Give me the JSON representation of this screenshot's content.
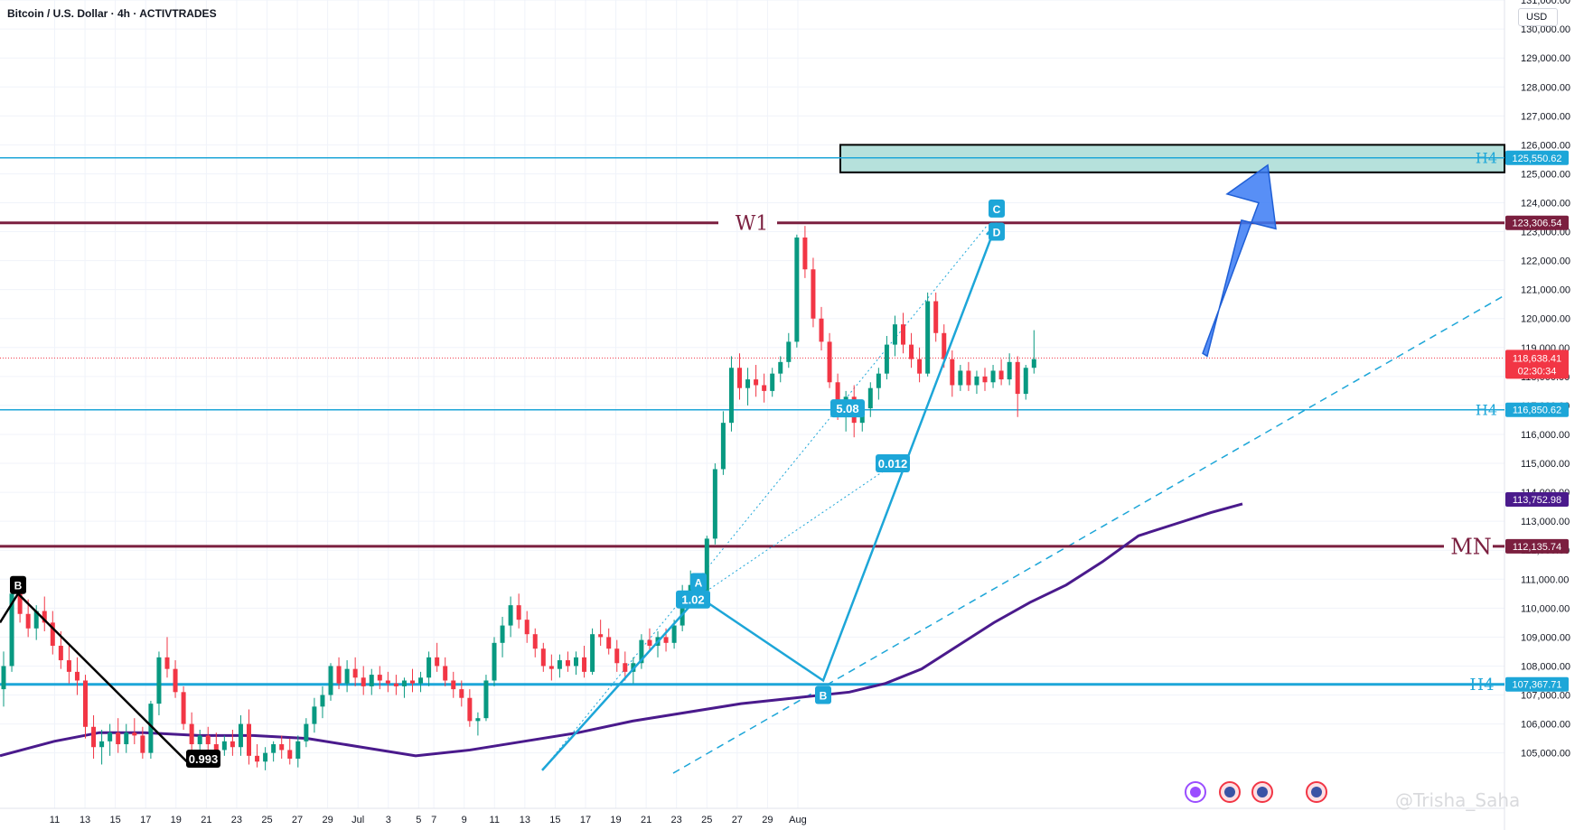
{
  "header": {
    "title": "Bitcoin / U.S. Dollar · 4h · ACTIVTRADES",
    "currency": "USD"
  },
  "watermark": "@Trisha_Saha",
  "colors": {
    "up": "#089981",
    "down": "#f23645",
    "blue": "#1da6d8",
    "maroon": "#7b1f3f",
    "purple": "#4a1a8c",
    "arrow": "#3b7bf5"
  },
  "chart_data": {
    "type": "candlestick",
    "title": "Bitcoin / U.S. Dollar · 4h · ACTIVTRADES",
    "ylim": [
      104500,
      131700
    ],
    "y_ticks": [
      105000,
      106000,
      107000,
      108000,
      109000,
      110000,
      111000,
      112000,
      113000,
      114000,
      115000,
      116000,
      117000,
      118000,
      119000,
      120000,
      121000,
      122000,
      123000,
      124000,
      125000,
      126000,
      127000,
      128000,
      129000,
      130000,
      131000
    ],
    "x_ticks": [
      "11",
      "13",
      "15",
      "17",
      "19",
      "21",
      "23",
      "25",
      "27",
      "29",
      "Jul",
      "3",
      "5",
      "7",
      "9",
      "11",
      "13",
      "15",
      "17",
      "19",
      "21",
      "23",
      "25",
      "27",
      "29",
      "Aug"
    ],
    "candles": [
      [
        107200,
        108500,
        106600,
        108000
      ],
      [
        108000,
        110600,
        107800,
        110500
      ],
      [
        110500,
        110700,
        109500,
        109800
      ],
      [
        109800,
        110300,
        109000,
        109300
      ],
      [
        109300,
        110100,
        108900,
        109900
      ],
      [
        109900,
        110400,
        109200,
        109500
      ],
      [
        109500,
        109900,
        108400,
        108700
      ],
      [
        108700,
        109200,
        107900,
        108200
      ],
      [
        108200,
        108700,
        107400,
        107800
      ],
      [
        107800,
        108300,
        107000,
        107500
      ],
      [
        107500,
        107700,
        105500,
        105900
      ],
      [
        105900,
        106300,
        104800,
        105200
      ],
      [
        105200,
        105800,
        104600,
        105400
      ],
      [
        105400,
        106000,
        104900,
        105700
      ],
      [
        105700,
        106200,
        105000,
        105300
      ],
      [
        105300,
        106000,
        105000,
        105700
      ],
      [
        105700,
        106200,
        105300,
        105600
      ],
      [
        105600,
        105900,
        104800,
        105000
      ],
      [
        105000,
        106800,
        104800,
        106700
      ],
      [
        106700,
        108500,
        106300,
        108300
      ],
      [
        108300,
        109000,
        107600,
        107900
      ],
      [
        107900,
        108200,
        106900,
        107100
      ],
      [
        107100,
        107300,
        105800,
        106000
      ],
      [
        106000,
        106400,
        104900,
        105300
      ],
      [
        105300,
        105800,
        104800,
        105600
      ],
      [
        105600,
        105900,
        104900,
        105300
      ],
      [
        105300,
        105700,
        104800,
        105100
      ],
      [
        105100,
        105600,
        104900,
        105400
      ],
      [
        105400,
        105800,
        104900,
        105200
      ],
      [
        105200,
        106300,
        104900,
        106000
      ],
      [
        106000,
        106500,
        104600,
        104900
      ],
      [
        104900,
        105300,
        104500,
        104700
      ],
      [
        104700,
        105200,
        104400,
        105000
      ],
      [
        105000,
        105400,
        104700,
        105300
      ],
      [
        105300,
        105600,
        104800,
        105100
      ],
      [
        105100,
        105500,
        104600,
        104800
      ],
      [
        104800,
        105600,
        104500,
        105400
      ],
      [
        105400,
        106200,
        105200,
        106000
      ],
      [
        106000,
        106900,
        105700,
        106600
      ],
      [
        106600,
        107300,
        106200,
        107000
      ],
      [
        107000,
        108100,
        106800,
        108000
      ],
      [
        108000,
        108300,
        107200,
        107400
      ],
      [
        107400,
        108200,
        107100,
        107900
      ],
      [
        107900,
        108300,
        107300,
        107600
      ],
      [
        107600,
        108000,
        107000,
        107300
      ],
      [
        107300,
        107900,
        107000,
        107700
      ],
      [
        107700,
        108000,
        107200,
        107500
      ],
      [
        107500,
        107800,
        107100,
        107400
      ],
      [
        107400,
        107700,
        107000,
        107300
      ],
      [
        107300,
        107600,
        106900,
        107500
      ],
      [
        107500,
        107900,
        107100,
        107400
      ],
      [
        107400,
        107800,
        107100,
        107600
      ],
      [
        107600,
        108500,
        107300,
        108300
      ],
      [
        108300,
        108800,
        107800,
        108000
      ],
      [
        108000,
        108300,
        107300,
        107500
      ],
      [
        107500,
        107800,
        106900,
        107200
      ],
      [
        107200,
        107500,
        106600,
        106900
      ],
      [
        106900,
        107200,
        105900,
        106100
      ],
      [
        106100,
        106400,
        105600,
        106200
      ],
      [
        106200,
        107700,
        106100,
        107500
      ],
      [
        107500,
        109000,
        107300,
        108800
      ],
      [
        108800,
        109700,
        108300,
        109400
      ],
      [
        109400,
        110400,
        109000,
        110100
      ],
      [
        110100,
        110500,
        109300,
        109600
      ],
      [
        109600,
        109900,
        108800,
        109100
      ],
      [
        109100,
        109300,
        108300,
        108600
      ],
      [
        108600,
        108800,
        107800,
        108000
      ],
      [
        108000,
        108400,
        107500,
        107900
      ],
      [
        107900,
        108400,
        107600,
        108200
      ],
      [
        108200,
        108500,
        107800,
        108000
      ],
      [
        108000,
        108500,
        107700,
        108300
      ],
      [
        108300,
        108700,
        107600,
        107800
      ],
      [
        107800,
        109300,
        107700,
        109100
      ],
      [
        109100,
        109600,
        108700,
        109000
      ],
      [
        109000,
        109300,
        108400,
        108600
      ],
      [
        108600,
        108900,
        107800,
        108100
      ],
      [
        108100,
        108500,
        107500,
        107800
      ],
      [
        107800,
        108300,
        107400,
        108100
      ],
      [
        108100,
        109100,
        107900,
        108900
      ],
      [
        108900,
        109300,
        108500,
        108700
      ],
      [
        108700,
        109200,
        108300,
        109000
      ],
      [
        109000,
        109300,
        108500,
        108800
      ],
      [
        108800,
        109600,
        108600,
        109400
      ],
      [
        109400,
        110800,
        109200,
        110600
      ],
      [
        110600,
        111300,
        110200,
        110800
      ],
      [
        110800,
        111200,
        110400,
        110600
      ],
      [
        110600,
        112500,
        110500,
        112400
      ],
      [
        112400,
        115000,
        112200,
        114800
      ],
      [
        114800,
        116800,
        114600,
        116400
      ],
      [
        116400,
        118700,
        116100,
        118300
      ],
      [
        118300,
        118800,
        117200,
        117600
      ],
      [
        117600,
        118300,
        117000,
        117900
      ],
      [
        117900,
        118400,
        117300,
        117700
      ],
      [
        117700,
        118100,
        117100,
        117500
      ],
      [
        117500,
        118300,
        117300,
        118100
      ],
      [
        118100,
        118700,
        117800,
        118500
      ],
      [
        118500,
        119500,
        118300,
        119200
      ],
      [
        119200,
        122900,
        119000,
        122800
      ],
      [
        122800,
        123200,
        121400,
        121700
      ],
      [
        121700,
        122100,
        119700,
        120000
      ],
      [
        120000,
        120400,
        118900,
        119200
      ],
      [
        119200,
        119500,
        117600,
        117800
      ],
      [
        117800,
        118100,
        116500,
        116900
      ],
      [
        116900,
        117500,
        116100,
        117300
      ],
      [
        117300,
        117700,
        115900,
        116400
      ],
      [
        116400,
        117100,
        116100,
        116900
      ],
      [
        116900,
        117800,
        116600,
        117600
      ],
      [
        117600,
        118300,
        117200,
        118100
      ],
      [
        118100,
        119400,
        117900,
        119100
      ],
      [
        119100,
        120100,
        118700,
        119800
      ],
      [
        119800,
        120200,
        118800,
        119100
      ],
      [
        119100,
        119500,
        118300,
        118600
      ],
      [
        118600,
        119000,
        117800,
        118100
      ],
      [
        118100,
        120900,
        118000,
        120600
      ],
      [
        120600,
        120900,
        119200,
        119500
      ],
      [
        119500,
        119800,
        118300,
        118600
      ],
      [
        118600,
        118900,
        117300,
        117700
      ],
      [
        117700,
        118400,
        117500,
        118200
      ],
      [
        118200,
        118500,
        117500,
        117700
      ],
      [
        117700,
        118200,
        117400,
        118000
      ],
      [
        118000,
        118300,
        117500,
        117800
      ],
      [
        117800,
        118400,
        117600,
        118200
      ],
      [
        118200,
        118600,
        117700,
        117900
      ],
      [
        117900,
        118800,
        117700,
        118500
      ],
      [
        118500,
        118700,
        116600,
        117400
      ],
      [
        117400,
        118400,
        117200,
        118300
      ],
      [
        118300,
        119600,
        118100,
        118600
      ]
    ],
    "levels": [
      {
        "label": "H4",
        "value": 125550.62,
        "price_label": "125,550.62"
      },
      {
        "label": "W1",
        "value": 123306.54,
        "price_label": "123,306.54"
      },
      {
        "label": "H4",
        "value": 116850.62,
        "price_label": "116,850.62"
      },
      {
        "label": "MN",
        "value": 112135.74,
        "price_label": "112,135.74"
      },
      {
        "label": "H4",
        "value": 107367.71,
        "price_label": "107,367.71"
      }
    ],
    "current_price": {
      "value": 118638.41,
      "price_label": "118,638.41",
      "countdown": "02:30:34"
    },
    "ma_label": {
      "value": 113752.98,
      "price_label": "113,752.98"
    },
    "zone": {
      "from": 125050,
      "to": 126000
    },
    "pattern_labels": [
      "B",
      "A",
      "B",
      "C",
      "D"
    ],
    "ratio_labels": [
      "1.02",
      "5.08",
      "0.012",
      "0.993"
    ]
  }
}
